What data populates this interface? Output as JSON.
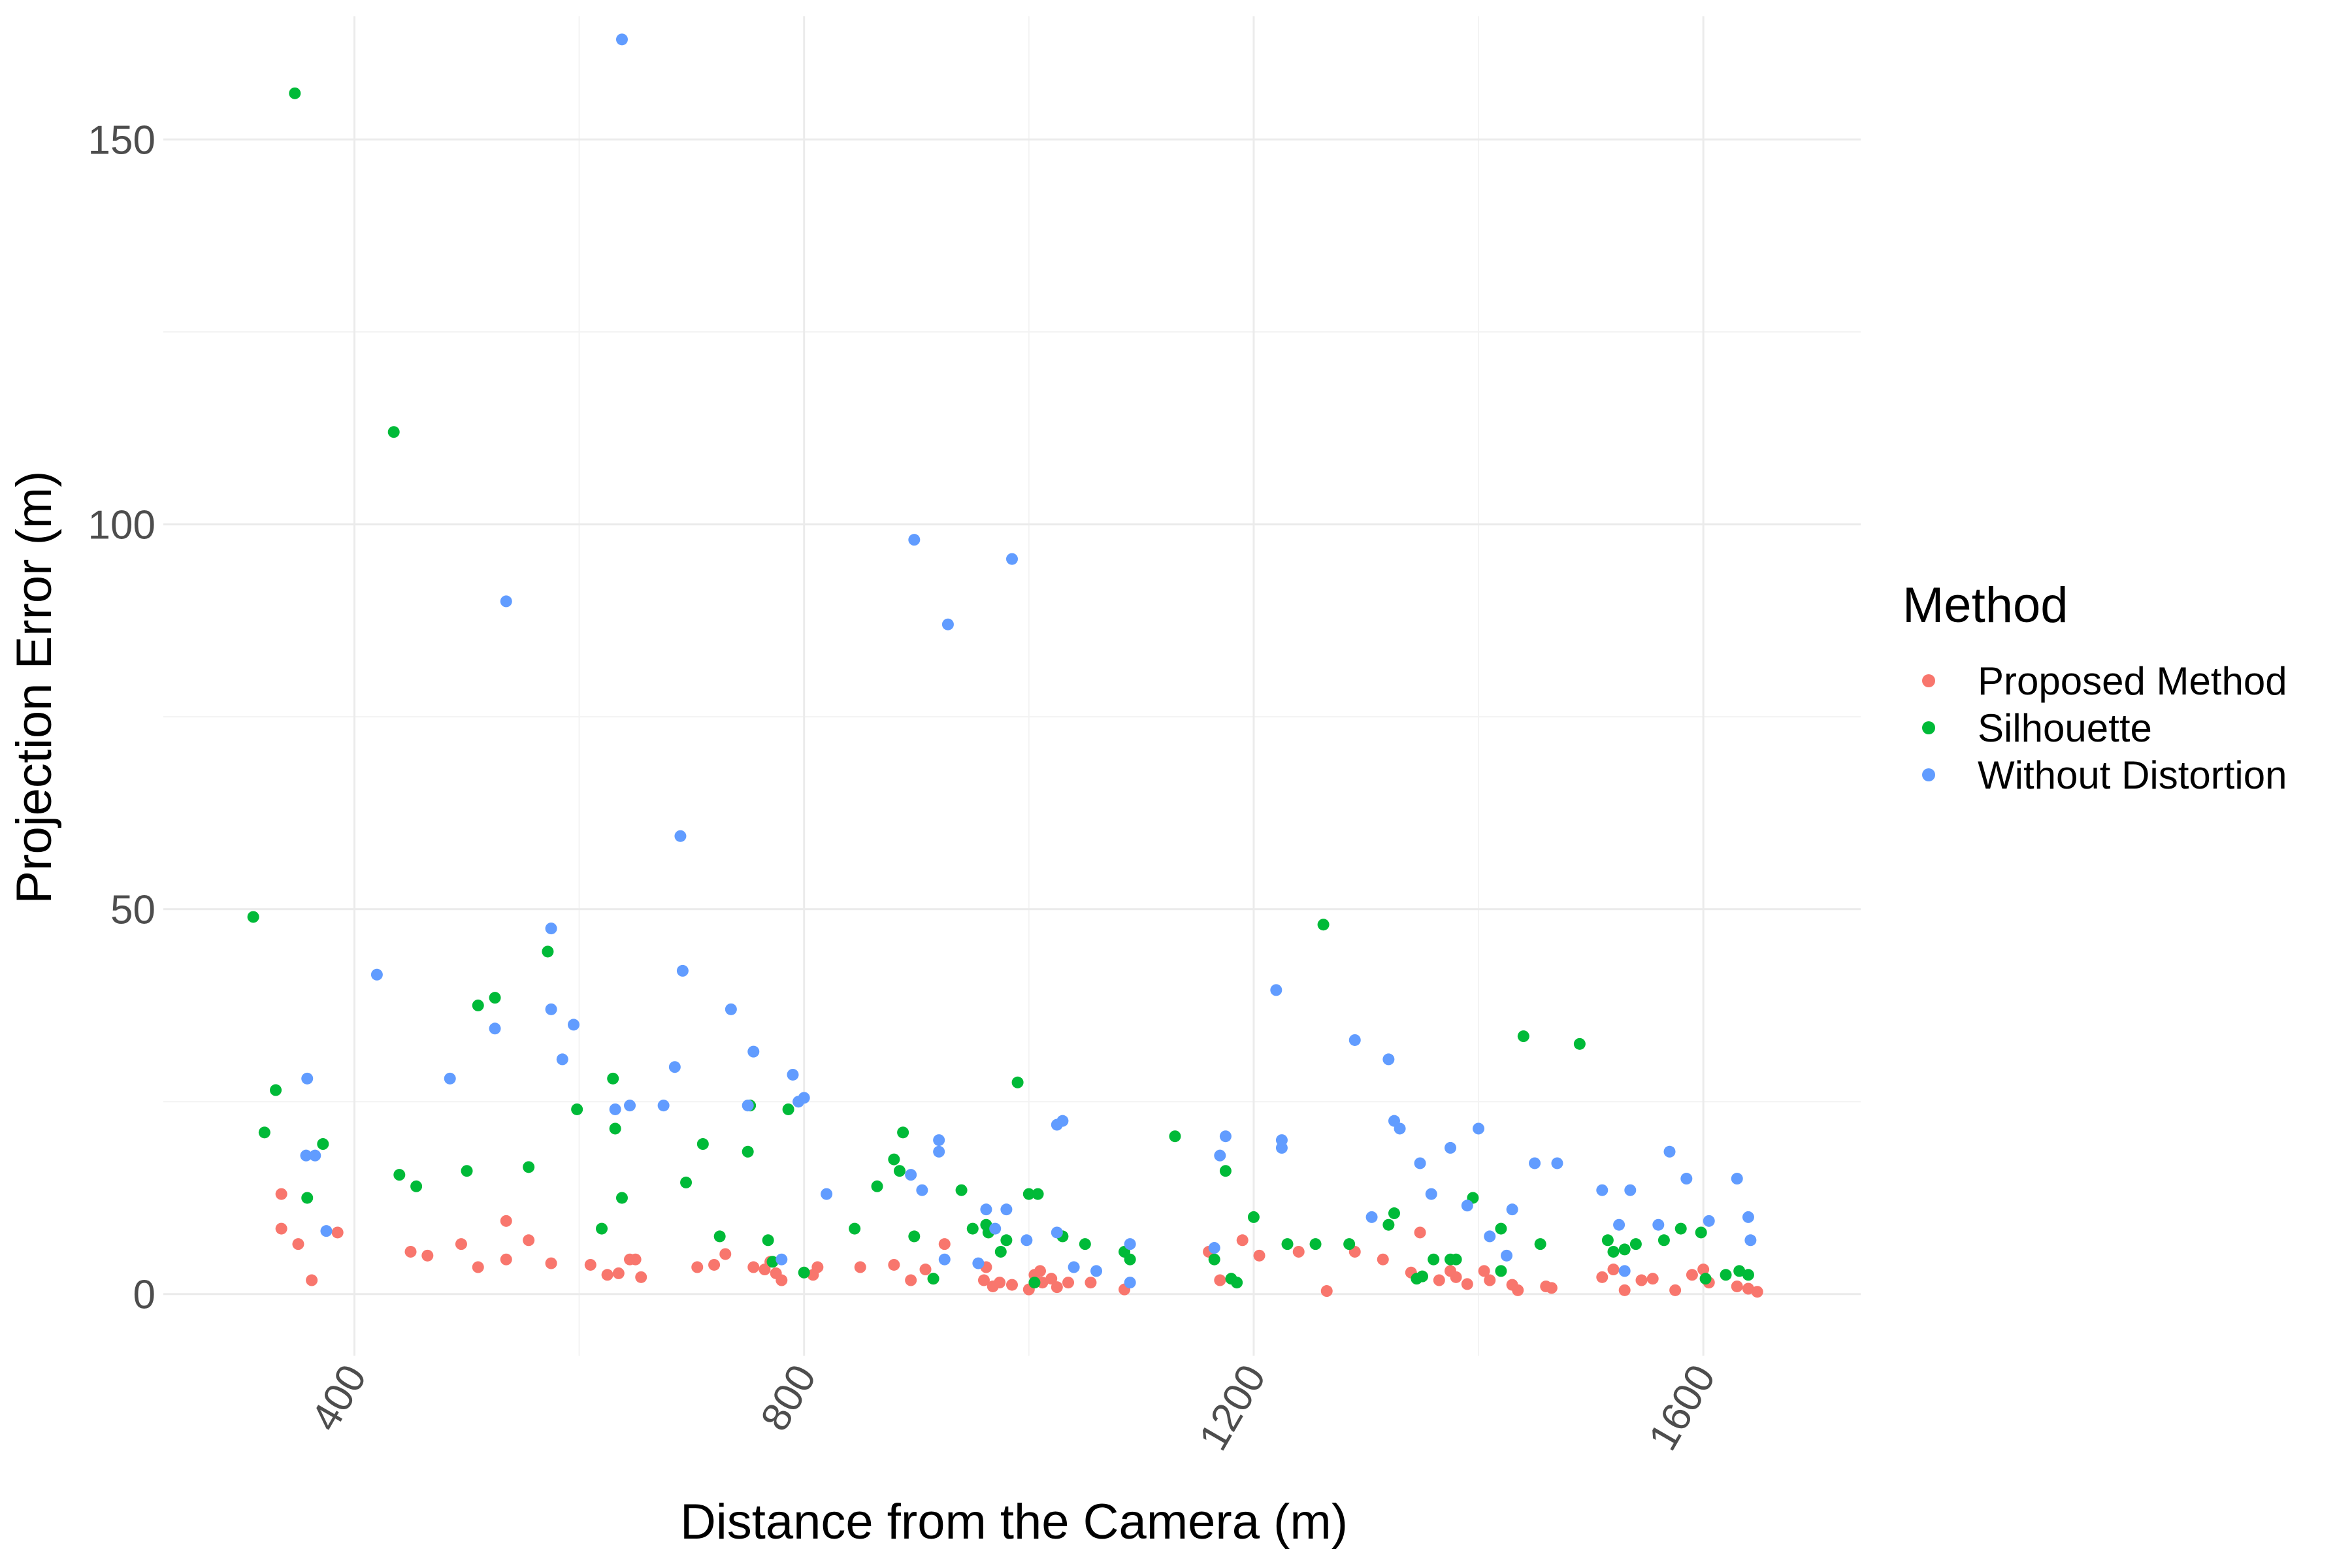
{
  "chart_data": {
    "type": "scatter",
    "title": "",
    "xlabel": "Distance from the Camera (m)",
    "ylabel": "Projection Error (m)",
    "xlim": [
      230,
      1740
    ],
    "ylim": [
      -8,
      166
    ],
    "x_ticks": [
      400,
      800,
      1200,
      1600
    ],
    "y_ticks": [
      0,
      50,
      100,
      150
    ],
    "x_tick_labels": [
      "400",
      "800",
      "1200",
      "1600"
    ],
    "y_tick_labels": [
      "0",
      "50",
      "100",
      "150"
    ],
    "grid": true,
    "legend": {
      "title": "Method",
      "position": "right"
    },
    "series": [
      {
        "name": "Proposed Method",
        "color": "#F8766D",
        "points": [
          [
            335,
            13
          ],
          [
            335,
            8.5
          ],
          [
            350,
            6.5
          ],
          [
            362,
            1.8
          ],
          [
            385,
            8
          ],
          [
            450,
            5.5
          ],
          [
            465,
            5
          ],
          [
            495,
            6.5
          ],
          [
            510,
            3.5
          ],
          [
            535,
            9.5
          ],
          [
            535,
            4.5
          ],
          [
            555,
            7
          ],
          [
            575,
            4
          ],
          [
            610,
            3.8
          ],
          [
            625,
            2.5
          ],
          [
            635,
            2.7
          ],
          [
            645,
            4.5
          ],
          [
            650,
            4.5
          ],
          [
            655,
            2.2
          ],
          [
            705,
            3.5
          ],
          [
            720,
            3.8
          ],
          [
            730,
            5.2
          ],
          [
            755,
            3.5
          ],
          [
            765,
            3.2
          ],
          [
            770,
            4.2
          ],
          [
            775,
            2.7
          ],
          [
            780,
            1.8
          ],
          [
            808,
            2.5
          ],
          [
            812,
            3.5
          ],
          [
            850,
            3.5
          ],
          [
            880,
            3.8
          ],
          [
            895,
            1.8
          ],
          [
            908,
            3.2
          ],
          [
            915,
            2
          ],
          [
            925,
            6.5
          ],
          [
            960,
            1.8
          ],
          [
            962,
            3.5
          ],
          [
            968,
            1
          ],
          [
            974,
            1.5
          ],
          [
            985,
            1.2
          ],
          [
            1000,
            0.6
          ],
          [
            1005,
            2.5
          ],
          [
            1010,
            3
          ],
          [
            1012,
            1.5
          ],
          [
            1020,
            2
          ],
          [
            1025,
            0.9
          ],
          [
            1035,
            1.5
          ],
          [
            1055,
            1.5
          ],
          [
            1085,
            0.6
          ],
          [
            1160,
            5.5
          ],
          [
            1170,
            1.8
          ],
          [
            1190,
            7
          ],
          [
            1205,
            5
          ],
          [
            1240,
            5.5
          ],
          [
            1265,
            0.4
          ],
          [
            1290,
            5.5
          ],
          [
            1315,
            4.5
          ],
          [
            1340,
            2.8
          ],
          [
            1348,
            8
          ],
          [
            1365,
            1.8
          ],
          [
            1375,
            3
          ],
          [
            1380,
            2.2
          ],
          [
            1390,
            1.3
          ],
          [
            1405,
            3
          ],
          [
            1410,
            1.8
          ],
          [
            1430,
            1.2
          ],
          [
            1435,
            0.5
          ],
          [
            1460,
            1
          ],
          [
            1465,
            0.8
          ],
          [
            1510,
            2.2
          ],
          [
            1520,
            3.2
          ],
          [
            1530,
            0.5
          ],
          [
            1545,
            1.8
          ],
          [
            1555,
            2
          ],
          [
            1575,
            0.5
          ],
          [
            1590,
            2.5
          ],
          [
            1600,
            3.2
          ],
          [
            1605,
            1.5
          ],
          [
            1630,
            1
          ],
          [
            1640,
            0.7
          ],
          [
            1648,
            0.3
          ]
        ]
      },
      {
        "name": "Silhouette",
        "color": "#00BA38",
        "points": [
          [
            310,
            49
          ],
          [
            320,
            21
          ],
          [
            330,
            26.5
          ],
          [
            347,
            156
          ],
          [
            358,
            12.5
          ],
          [
            372,
            19.5
          ],
          [
            435,
            112
          ],
          [
            440,
            15.5
          ],
          [
            455,
            14
          ],
          [
            500,
            16
          ],
          [
            510,
            37.5
          ],
          [
            525,
            38.5
          ],
          [
            555,
            16.5
          ],
          [
            572,
            44.5
          ],
          [
            598,
            24
          ],
          [
            620,
            8.5
          ],
          [
            630,
            28
          ],
          [
            632,
            21.5
          ],
          [
            638,
            12.5
          ],
          [
            695,
            14.5
          ],
          [
            710,
            19.5
          ],
          [
            725,
            7.5
          ],
          [
            750,
            18.5
          ],
          [
            752,
            24.5
          ],
          [
            768,
            7
          ],
          [
            772,
            4.2
          ],
          [
            786,
            24
          ],
          [
            800,
            2.8
          ],
          [
            845,
            8.5
          ],
          [
            865,
            14
          ],
          [
            880,
            17.5
          ],
          [
            885,
            16
          ],
          [
            888,
            21
          ],
          [
            898,
            7.5
          ],
          [
            915,
            2
          ],
          [
            940,
            13.5
          ],
          [
            950,
            8.5
          ],
          [
            962,
            9
          ],
          [
            964,
            8
          ],
          [
            975,
            5.5
          ],
          [
            980,
            7
          ],
          [
            990,
            27.5
          ],
          [
            1000,
            13
          ],
          [
            1005,
            1.5
          ],
          [
            1008,
            13
          ],
          [
            1030,
            7.5
          ],
          [
            1050,
            6.5
          ],
          [
            1085,
            5.5
          ],
          [
            1090,
            4.5
          ],
          [
            1130,
            20.5
          ],
          [
            1165,
            4.5
          ],
          [
            1175,
            16
          ],
          [
            1180,
            2
          ],
          [
            1185,
            1.5
          ],
          [
            1200,
            10
          ],
          [
            1230,
            6.5
          ],
          [
            1255,
            6.5
          ],
          [
            1262,
            48
          ],
          [
            1285,
            6.5
          ],
          [
            1320,
            9
          ],
          [
            1325,
            10.5
          ],
          [
            1345,
            2
          ],
          [
            1350,
            2.3
          ],
          [
            1360,
            4.5
          ],
          [
            1375,
            4.5
          ],
          [
            1380,
            4.5
          ],
          [
            1395,
            12.5
          ],
          [
            1420,
            8.5
          ],
          [
            1420,
            3
          ],
          [
            1440,
            33.5
          ],
          [
            1455,
            6.5
          ],
          [
            1490,
            32.5
          ],
          [
            1515,
            7
          ],
          [
            1520,
            5.5
          ],
          [
            1530,
            5.8
          ],
          [
            1540,
            6.5
          ],
          [
            1565,
            7
          ],
          [
            1580,
            8.5
          ],
          [
            1598,
            8
          ],
          [
            1602,
            2
          ],
          [
            1620,
            2.5
          ],
          [
            1632,
            3
          ],
          [
            1640,
            2.5
          ]
        ]
      },
      {
        "name": "Without Distortion",
        "color": "#619CFF",
        "points": [
          [
            357,
            18
          ],
          [
            358,
            28
          ],
          [
            365,
            18
          ],
          [
            375,
            8.2
          ],
          [
            420,
            41.5
          ],
          [
            485,
            28
          ],
          [
            525,
            34.5
          ],
          [
            535,
            90
          ],
          [
            575,
            37
          ],
          [
            575,
            47.5
          ],
          [
            585,
            30.5
          ],
          [
            595,
            35
          ],
          [
            632,
            24
          ],
          [
            638,
            163
          ],
          [
            645,
            24.5
          ],
          [
            675,
            24.5
          ],
          [
            685,
            29.5
          ],
          [
            690,
            59.5
          ],
          [
            692,
            42
          ],
          [
            735,
            37
          ],
          [
            750,
            24.5
          ],
          [
            755,
            31.5
          ],
          [
            780,
            4.5
          ],
          [
            790,
            28.5
          ],
          [
            795,
            25
          ],
          [
            800,
            25.5
          ],
          [
            820,
            13
          ],
          [
            895,
            15.5
          ],
          [
            898,
            98
          ],
          [
            905,
            13.5
          ],
          [
            920,
            20
          ],
          [
            920,
            18.5
          ],
          [
            928,
            87
          ],
          [
            925,
            4.5
          ],
          [
            955,
            4
          ],
          [
            962,
            11
          ],
          [
            970,
            8.5
          ],
          [
            980,
            11
          ],
          [
            985,
            95.5
          ],
          [
            998,
            7
          ],
          [
            1025,
            8
          ],
          [
            1025,
            22
          ],
          [
            1030,
            22.5
          ],
          [
            1040,
            3.5
          ],
          [
            1060,
            3
          ],
          [
            1090,
            6.5
          ],
          [
            1090,
            1.5
          ],
          [
            1165,
            6
          ],
          [
            1170,
            18
          ],
          [
            1175,
            20.5
          ],
          [
            1220,
            39.5
          ],
          [
            1225,
            20
          ],
          [
            1225,
            19
          ],
          [
            1290,
            33
          ],
          [
            1305,
            10
          ],
          [
            1320,
            30.5
          ],
          [
            1325,
            22.5
          ],
          [
            1330,
            21.5
          ],
          [
            1348,
            17
          ],
          [
            1358,
            13
          ],
          [
            1375,
            19
          ],
          [
            1390,
            11.5
          ],
          [
            1400,
            21.5
          ],
          [
            1410,
            7.5
          ],
          [
            1425,
            5
          ],
          [
            1430,
            11
          ],
          [
            1450,
            17
          ],
          [
            1470,
            17
          ],
          [
            1510,
            13.5
          ],
          [
            1525,
            9
          ],
          [
            1530,
            3
          ],
          [
            1535,
            13.5
          ],
          [
            1560,
            9
          ],
          [
            1570,
            18.5
          ],
          [
            1585,
            15
          ],
          [
            1605,
            9.5
          ],
          [
            1630,
            15
          ],
          [
            1640,
            10
          ],
          [
            1642,
            7
          ]
        ]
      }
    ]
  }
}
